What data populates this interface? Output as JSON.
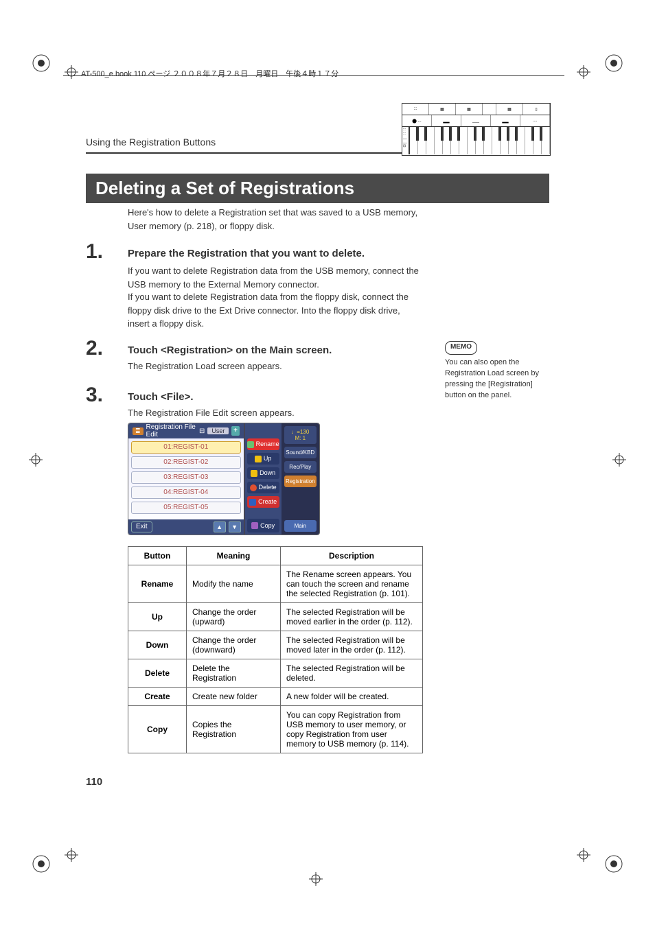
{
  "header_line": "AT-500_e.book  110 ページ  ２００８年７月２８日　月曜日　午後４時１７分",
  "section_title": "Using the Registration Buttons",
  "main_heading": "Deleting a Set of Registrations",
  "intro_text": "Here's how to delete a Registration set that was saved to a USB memory, User memory (p. 218), or floppy disk.",
  "steps": [
    {
      "num": "1.",
      "head": "Prepare the Registration that you want to delete.",
      "body_a": "If you want to delete Registration data from the USB memory, connect the USB memory to the External Memory connector.",
      "body_b": "If you want to delete Registration data from the floppy disk, connect the floppy disk drive to the Ext Drive connector. Into the floppy disk drive, insert a floppy disk."
    },
    {
      "num": "2.",
      "head": "Touch <Registration> on the Main screen.",
      "body_a": "The Registration Load screen appears."
    },
    {
      "num": "3.",
      "head": "Touch <File>.",
      "body_a": "The Registration File Edit screen appears."
    }
  ],
  "memo": {
    "label": "MEMO",
    "text": "You can also open the Registration Load screen by pressing the [Registration] button on the panel."
  },
  "screen": {
    "title_icon": "≣",
    "title": "Registration File Edit",
    "title_extra": "⊟",
    "user_tag": "User",
    "plus": "+",
    "rows": [
      "01:REGIST-01",
      "02:REGIST-02",
      "03:REGIST-03",
      "04:REGIST-04",
      "05:REGIST-05"
    ],
    "exit": "Exit",
    "tri_up": "▲",
    "tri_dn": "▼",
    "mid_btns": {
      "rename": "Rename",
      "up": "Up",
      "down": "Down",
      "delete": "Delete",
      "create": "Create",
      "copy": "Copy"
    },
    "right": {
      "tempo_line1": "♩=130",
      "tempo_line2": "M:    1",
      "sound": "Sound/KBD",
      "rec": "Rec/Play",
      "reg": "Registration",
      "main": "Main"
    }
  },
  "table": {
    "headers": [
      "Button",
      "Meaning",
      "Description"
    ],
    "rows": [
      {
        "button": "Rename",
        "meaning": "Modify the name",
        "desc": "The Rename screen appears. You can touch the screen and rename the selected Registration (p. 101)."
      },
      {
        "button": "Up",
        "meaning": "Change the order (upward)",
        "desc": "The selected Registration will be moved earlier in the order (p. 112)."
      },
      {
        "button": "Down",
        "meaning": "Change the order (downward)",
        "desc": "The selected Registration will be moved later in the order (p. 112)."
      },
      {
        "button": "Delete",
        "meaning": "Delete the Registration",
        "desc": "The selected Registration will be deleted."
      },
      {
        "button": "Create",
        "meaning": "Create new folder",
        "desc": "A new folder will be created."
      },
      {
        "button": "Copy",
        "meaning": "Copies the Registration",
        "desc": "You can copy Registration from USB memory to user memory, or copy Registration from user memory to USB memory (p. 114)."
      }
    ]
  },
  "page_number": "110",
  "colors": {
    "heading_bg": "#4a4a4a",
    "screen_bg": "#3a4a7a",
    "screen_dark": "#2a3050",
    "accent_orange": "#d08030",
    "accent_red": "#e03030"
  }
}
